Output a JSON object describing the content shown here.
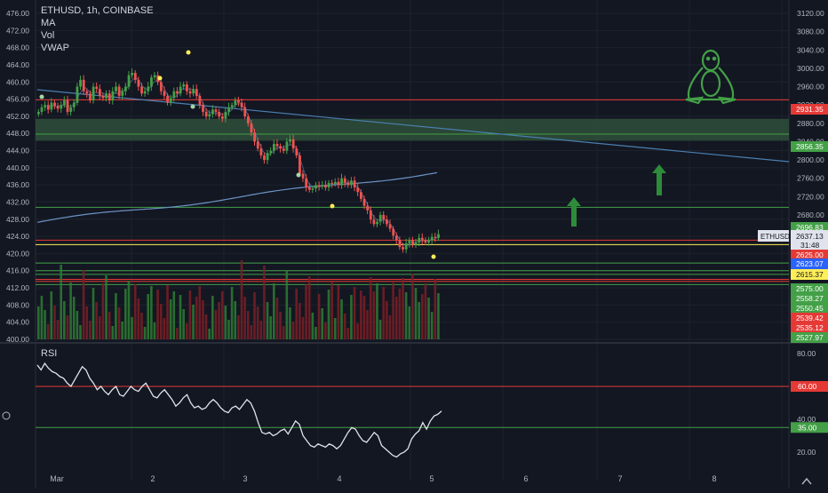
{
  "header": {
    "symbol": "ETHUSD, 1h, COINBASE"
  },
  "indicators": {
    "ma": "MA",
    "vol": "Vol",
    "vwap": "VWAP",
    "rsi": "RSI"
  },
  "colors": {
    "background": "#131722",
    "grid": "#1e222d",
    "up": "#26a69a",
    "upFill": "#43a047",
    "down": "#ef5350",
    "volUp": "#2e7d32",
    "volDown": "#7b1f26",
    "trendline": "#4a7fb0",
    "zone": "#2f4f3a",
    "arrow": "#2e8b3a",
    "rsiLine": "#e0e3eb"
  },
  "chart_data": [
    {
      "type": "candlestick",
      "title": "ETHUSD, 1h, COINBASE",
      "x_ticks": [
        "Mar",
        "2",
        "3",
        "4",
        "5",
        "6",
        "7",
        "8"
      ],
      "y_left_ticks": [
        "476.00",
        "472.00",
        "468.00",
        "464.00",
        "460.00",
        "456.00",
        "452.00",
        "448.00",
        "444.00",
        "440.00",
        "436.00",
        "432.00",
        "428.00",
        "424.00",
        "420.00",
        "416.00",
        "412.00",
        "408.00",
        "404.00",
        "400.00"
      ],
      "y_right_ticks": [
        "3120.00",
        "3080.00",
        "3040.00",
        "3000.00",
        "2960.00",
        "2920.00",
        "2880.00",
        "2840.00",
        "2800.00",
        "2760.00",
        "2720.00",
        "2680.00"
      ],
      "price_labels": [
        {
          "text": "2931.35",
          "color": "#e53935"
        },
        {
          "text": "2856.35",
          "color": "#43a047"
        },
        {
          "text": "2696.83",
          "color": "#43a047"
        },
        {
          "text": "2637.13",
          "sub": "31:48",
          "color": "#e0e3eb",
          "name": "ETHUSD"
        },
        {
          "text": "2625.00",
          "color": "#e53935"
        },
        {
          "text": "2623.07",
          "color": "#2962ff"
        },
        {
          "text": "2615.37",
          "color": "#ffee58"
        },
        {
          "text": "2575.00",
          "color": "#43a047"
        },
        {
          "text": "2558.27",
          "color": "#43a047"
        },
        {
          "text": "2550.45",
          "color": "#43a047"
        },
        {
          "text": "2539.42",
          "color": "#e53935"
        },
        {
          "text": "2535.12",
          "color": "#e53935"
        },
        {
          "text": "2527.97",
          "color": "#43a047"
        }
      ],
      "horizontal_lines": [
        {
          "price": 2931.35,
          "color": "#e53935"
        },
        {
          "price": 2856.35,
          "color": "#43a047"
        },
        {
          "price": 2696.83,
          "color": "#43a047"
        },
        {
          "price": 2625.0,
          "color": "#e53935"
        },
        {
          "price": 2615.37,
          "color": "#ffee58"
        },
        {
          "price": 2575.0,
          "color": "#43a047"
        },
        {
          "price": 2558.27,
          "color": "#43a047"
        },
        {
          "price": 2550.45,
          "color": "#43a047"
        },
        {
          "price": 2539.42,
          "color": "#e53935"
        },
        {
          "price": 2535.12,
          "color": "#e53935"
        },
        {
          "price": 2527.97,
          "color": "#43a047"
        }
      ],
      "zone": {
        "top": 2890,
        "bottom": 2842
      },
      "candles_close": [
        2905,
        2915,
        2920,
        2910,
        2925,
        2918,
        2912,
        2920,
        2930,
        2905,
        2915,
        2925,
        2960,
        2975,
        2950,
        2945,
        2930,
        2960,
        2955,
        2940,
        2935,
        2945,
        2930,
        2950,
        2960,
        2940,
        2950,
        2960,
        2985,
        2990,
        2975,
        2960,
        2945,
        2950,
        2960,
        2980,
        2985,
        2970,
        2950,
        2940,
        2925,
        2935,
        2950,
        2945,
        2960,
        2965,
        2950,
        2945,
        2955,
        2940,
        2920,
        2905,
        2895,
        2900,
        2910,
        2905,
        2895,
        2890,
        2905,
        2915,
        2920,
        2930,
        2925,
        2915,
        2895,
        2880,
        2860,
        2840,
        2825,
        2810,
        2800,
        2815,
        2820,
        2835,
        2830,
        2825,
        2820,
        2840,
        2845,
        2825,
        2810,
        2770,
        2760,
        2740,
        2735,
        2738,
        2745,
        2742,
        2745,
        2740,
        2750,
        2748,
        2752,
        2745,
        2760,
        2750,
        2745,
        2755,
        2740,
        2730,
        2715,
        2700,
        2690,
        2670,
        2660,
        2665,
        2680,
        2670,
        2660,
        2650,
        2635,
        2625,
        2610,
        2605,
        2618,
        2625,
        2615,
        2620,
        2630,
        2625,
        2620,
        2625,
        2632,
        2630,
        2638
      ],
      "rsi": [
        73,
        70,
        74,
        71,
        69,
        68,
        66,
        65,
        62,
        60,
        64,
        68,
        72,
        70,
        65,
        62,
        58,
        60,
        57,
        55,
        58,
        60,
        55,
        54,
        57,
        60,
        58,
        57,
        60,
        62,
        58,
        54,
        53,
        56,
        58,
        55,
        52,
        48,
        50,
        53,
        55,
        50,
        47,
        48,
        46,
        47,
        50,
        52,
        50,
        47,
        45,
        44,
        47,
        48,
        46,
        49,
        52,
        50,
        45,
        38,
        32,
        31,
        32,
        30,
        31,
        33,
        34,
        31,
        35,
        39,
        37,
        30,
        27,
        24,
        23,
        25,
        24,
        23,
        25,
        24,
        22,
        24,
        28,
        32,
        35,
        34,
        30,
        27,
        26,
        29,
        32,
        30,
        24,
        22,
        20,
        18,
        17,
        19,
        20,
        22,
        28,
        31,
        33,
        38,
        34,
        39,
        42,
        43,
        45
      ]
    }
  ],
  "rsi_panel": {
    "y_ticks": [
      "80.00",
      "40.00",
      "20.00"
    ],
    "labels": [
      {
        "text": "60.00",
        "color": "#e53935"
      },
      {
        "text": "35.00",
        "color": "#43a047"
      }
    ]
  }
}
